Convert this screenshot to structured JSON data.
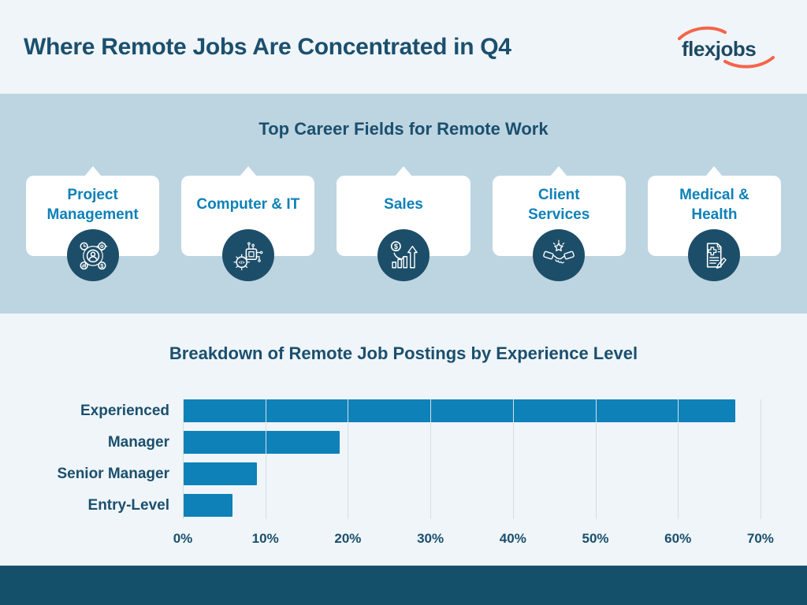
{
  "header": {
    "title": "Where Remote Jobs Are Concentrated in Q4",
    "logo_text": "flexjobs"
  },
  "career": {
    "section_title": "Top Career Fields for Remote Work",
    "cards": [
      {
        "label": "Project\nManagement",
        "icon": "project-management-icon"
      },
      {
        "label": "Computer & IT",
        "icon": "computer-it-icon"
      },
      {
        "label": "Sales",
        "icon": "sales-icon"
      },
      {
        "label": "Client\nServices",
        "icon": "client-services-icon"
      },
      {
        "label": "Medical &\nHealth",
        "icon": "medical-health-icon"
      }
    ]
  },
  "chart_data": {
    "type": "bar",
    "orientation": "horizontal",
    "title": "Breakdown of Remote Job Postings by Experience Level",
    "categories": [
      "Experienced",
      "Manager",
      "Senior Manager",
      "Entry-Level"
    ],
    "values": [
      67,
      19,
      9,
      6
    ],
    "unit": "%",
    "xlabel_ticks": [
      "0%",
      "10%",
      "20%",
      "30%",
      "40%",
      "50%",
      "60%",
      "70%"
    ],
    "xlim": [
      0,
      72
    ],
    "grid": true,
    "legend": "none",
    "bar_color": "#0e81b8"
  },
  "colors": {
    "accent_orange": "#f4654a",
    "bar_blue": "#0e81b8",
    "heading_navy": "#1b4f6e",
    "icon_circle_navy": "#1d4e69",
    "career_section_bg": "#bdd5e1",
    "light_section_bg": "#eff5f8",
    "footer_bg": "#15506b",
    "card_bg": "#ffffff"
  }
}
